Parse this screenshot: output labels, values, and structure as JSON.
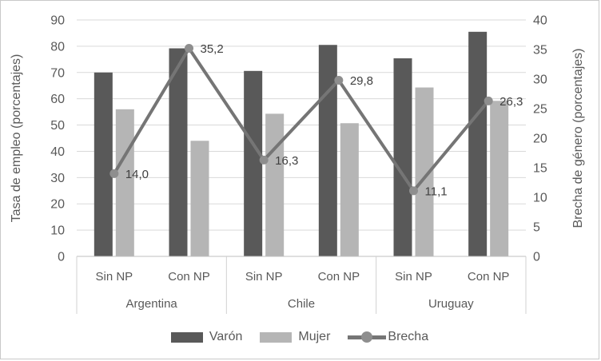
{
  "chart_data": {
    "type": "bar",
    "subtype": "grouped-bars-with-line-overlay",
    "categories": [
      "Sin NP",
      "Con NP",
      "Sin NP",
      "Con NP",
      "Sin NP",
      "Con NP"
    ],
    "group_labels": [
      "Argentina",
      "Chile",
      "Uruguay"
    ],
    "series": [
      {
        "name": "Varón",
        "type": "bar",
        "axis": "left",
        "values": [
          70.0,
          79.2,
          70.6,
          80.5,
          75.4,
          85.5
        ]
      },
      {
        "name": "Mujer",
        "type": "bar",
        "axis": "left",
        "values": [
          56.0,
          44.0,
          54.3,
          50.7,
          64.3,
          59.2
        ]
      },
      {
        "name": "Brecha",
        "type": "line",
        "axis": "right",
        "values": [
          14.0,
          35.2,
          16.3,
          29.8,
          11.1,
          26.3
        ],
        "point_labels": [
          "14,0",
          "35,2",
          "16,3",
          "29,8",
          "11,1",
          "26,3"
        ]
      }
    ],
    "left_axis": {
      "title": "Tasa de empleo (porcentajes)",
      "min": 0,
      "max": 90,
      "step": 10,
      "ticks": [
        "90",
        "80",
        "70",
        "60",
        "50",
        "40",
        "30",
        "20",
        "10",
        "0"
      ]
    },
    "right_axis": {
      "title": "Brecha de género (porcentajes)",
      "min": 0,
      "max": 40,
      "step": 5,
      "ticks": [
        "40",
        "35",
        "30",
        "25",
        "20",
        "15",
        "10",
        "5",
        "0"
      ]
    },
    "legend": {
      "position": "bottom",
      "entries": [
        {
          "label": "Varón",
          "marker": "bar-swatch"
        },
        {
          "label": "Mujer",
          "marker": "bar-swatch"
        },
        {
          "label": "Brecha",
          "marker": "line-with-dot"
        }
      ]
    },
    "grid": true
  },
  "colors": {
    "varon": "#595959",
    "mujer": "#b5b5b5",
    "line": "#757575",
    "marker_fill": "#8e8e8e",
    "grid": "#d9d9d9",
    "axis_line": "#bfbfbf",
    "box_line": "#d0d0d0",
    "tick_text": "#595959",
    "data_label_text": "#404040",
    "border": "#c9c9c9"
  }
}
